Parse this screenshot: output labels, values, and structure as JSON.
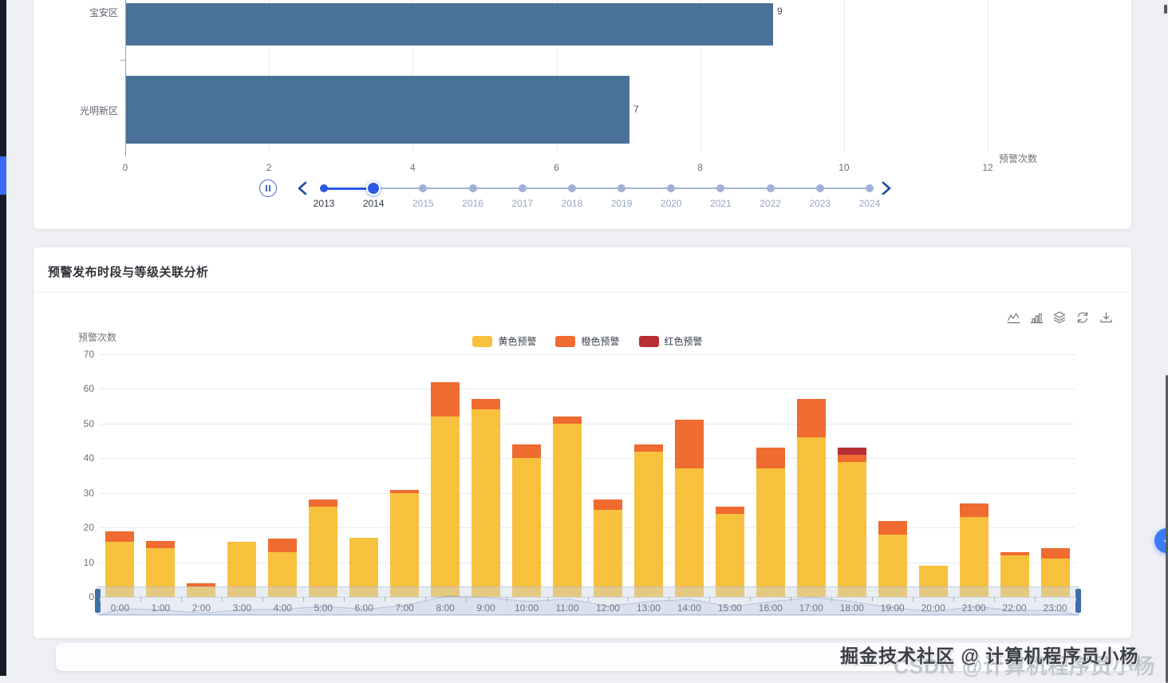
{
  "page": {
    "background_color": "#edeff3"
  },
  "watermark": {
    "front_text": "掘金技术社区 @ 计算机程序员小杨",
    "back_text": "CSDN @计算机程序员小杨"
  },
  "timeline": {
    "years": [
      "2013",
      "2014",
      "2015",
      "2016",
      "2017",
      "2018",
      "2019",
      "2020",
      "2021",
      "2022",
      "2023",
      "2024"
    ],
    "active_year": "2014",
    "played_years": [
      "2013",
      "2014"
    ],
    "active_color": "#2A5AE2",
    "inactive_color": "#A2AFD6"
  },
  "toolbar": {
    "icons": [
      "line-chart-icon",
      "bar-chart-icon",
      "stack-icon",
      "restore-icon",
      "download-icon"
    ]
  },
  "chart_data": [
    {
      "type": "bar",
      "orientation": "horizontal",
      "title": "",
      "categories": [
        "宝安区",
        "光明新区"
      ],
      "values": [
        9,
        7
      ],
      "xlabel": "预警次数",
      "x_ticks": [
        0,
        2,
        4,
        6,
        8,
        10,
        12
      ],
      "xlim": [
        0,
        12
      ],
      "bar_color": "#4A7298",
      "grid": true,
      "note": "topmost bar partially cut off by viewport top"
    },
    {
      "type": "bar",
      "stacked": true,
      "title": "预警发布时段与等级关联分析",
      "categories": [
        "0:00",
        "1:00",
        "2:00",
        "3:00",
        "4:00",
        "5:00",
        "6:00",
        "7:00",
        "8:00",
        "9:00",
        "10:00",
        "11:00",
        "12:00",
        "13:00",
        "14:00",
        "15:00",
        "16:00",
        "17:00",
        "18:00",
        "19:00",
        "20:00",
        "21:00",
        "22:00",
        "23:00"
      ],
      "series": [
        {
          "name": "黄色预警",
          "color": "#F7C13D",
          "values": [
            16,
            14,
            3,
            16,
            13,
            26,
            17,
            30,
            52,
            54,
            40,
            50,
            25,
            42,
            37,
            24,
            37,
            46,
            39,
            18,
            9,
            23,
            12,
            11
          ]
        },
        {
          "name": "橙色预警",
          "color": "#EF6B30",
          "values": [
            3,
            2,
            1,
            0,
            4,
            2,
            0,
            1,
            10,
            3,
            4,
            2,
            3,
            2,
            14,
            2,
            6,
            11,
            2,
            4,
            0,
            4,
            1,
            3
          ]
        },
        {
          "name": "红色预警",
          "color": "#B62F35",
          "values": [
            0,
            0,
            0,
            0,
            0,
            0,
            0,
            0,
            0,
            0,
            0,
            0,
            0,
            0,
            0,
            0,
            0,
            0,
            2,
            0,
            0,
            0,
            0,
            0
          ]
        }
      ],
      "ylabel": "预警次数",
      "ylim": [
        0,
        70
      ],
      "y_ticks": [
        0,
        10,
        20,
        30,
        40,
        50,
        60,
        70
      ],
      "legend": [
        "黄色预警",
        "橙色预警",
        "红色预警"
      ],
      "legend_position": "top-center",
      "grid": true,
      "datazoom": {
        "start_percent": 0,
        "end_percent": 100
      }
    }
  ]
}
